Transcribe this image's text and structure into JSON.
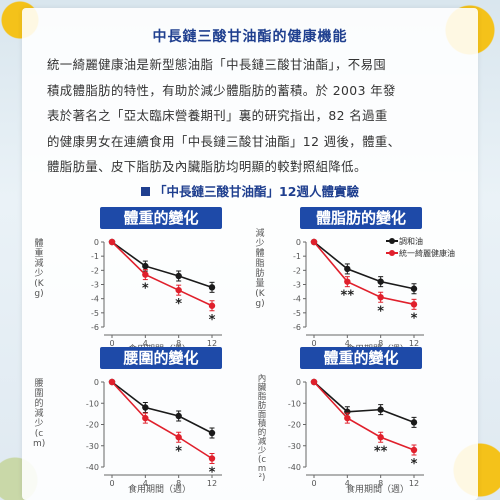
{
  "header": {
    "title": "中長鏈三酸甘油酯的健康機能",
    "paragraph": "統一綺麗健康油是新型態油脂「中長鏈三酸甘油酯」，不易囤\n積成體脂肪的特性，有助於減少體脂肪的蓄積。於 2003 年發\n表於著名之「亞太臨床營養期刊」裏的研究指出，82 名過重\n的健康男女在連續食用「中長鏈三酸甘油酯」12 週後，體重、\n體脂肪量、皮下脂肪及內臟脂肪均明顯的較對照組降低。",
    "subtitle": "「中長鏈三酸甘油酯」12週人體實驗"
  },
  "colors": {
    "control": "#1a1a1a",
    "treatment": "#e0202c",
    "title_bg": "#1e4aa8"
  },
  "legend": {
    "control": "調和油",
    "treatment": "統一綺麗健康油"
  },
  "chart_data": [
    {
      "type": "line",
      "title": "體重的變化",
      "ylabel": "體重減少(Kg)",
      "xlabel": "食用期間（週）",
      "x": [
        0,
        4,
        8,
        12
      ],
      "ylim": [
        -6,
        0
      ],
      "yticks": [
        0,
        -1,
        -2,
        -3,
        -4,
        -5,
        -6
      ],
      "series": [
        {
          "name": "調和油",
          "values": [
            0,
            -1.7,
            -2.4,
            -3.2
          ]
        },
        {
          "name": "統一綺麗健康油",
          "values": [
            0,
            -2.3,
            -3.4,
            -4.5
          ]
        }
      ],
      "annotations": [
        {
          "x": 4,
          "text": "*"
        },
        {
          "x": 8,
          "text": "*"
        },
        {
          "x": 12,
          "text": "*"
        }
      ]
    },
    {
      "type": "line",
      "title": "體脂肪的變化",
      "ylabel": "減少體脂肪量(Kg)",
      "xlabel": "食用期間（週）",
      "x": [
        0,
        4,
        8,
        12
      ],
      "ylim": [
        -6,
        0
      ],
      "yticks": [
        0,
        -1,
        -2,
        -3,
        -4,
        -5,
        -6
      ],
      "series": [
        {
          "name": "調和油",
          "values": [
            0,
            -1.9,
            -2.8,
            -3.3
          ]
        },
        {
          "name": "統一綺麗健康油",
          "values": [
            0,
            -2.8,
            -3.9,
            -4.4
          ]
        }
      ],
      "annotations": [
        {
          "x": 4,
          "text": "**"
        },
        {
          "x": 8,
          "text": "*"
        },
        {
          "x": 12,
          "text": "*"
        }
      ]
    },
    {
      "type": "line",
      "title": "腰圍的變化",
      "ylabel": "腰圍的減少(cm)",
      "xlabel": "食用期間（週）",
      "x": [
        0,
        4,
        8,
        12
      ],
      "ylim": [
        -40,
        0
      ],
      "yticks": [
        0,
        -10,
        -20,
        -30,
        -40
      ],
      "series": [
        {
          "name": "調和油",
          "values": [
            0,
            -12,
            -16,
            -24
          ]
        },
        {
          "name": "統一綺麗健康油",
          "values": [
            0,
            -17,
            -26,
            -36
          ]
        }
      ],
      "annotations": [
        {
          "x": 8,
          "text": "*"
        },
        {
          "x": 12,
          "text": "*"
        }
      ]
    },
    {
      "type": "line",
      "title": "體重的變化",
      "ylabel": "內臟脂肪面積的減少(cm²)",
      "xlabel": "食用期間（週）",
      "x": [
        0,
        4,
        8,
        12
      ],
      "ylim": [
        -40,
        0
      ],
      "yticks": [
        0,
        -10,
        -20,
        -30,
        -40
      ],
      "series": [
        {
          "name": "調和油",
          "values": [
            0,
            -14,
            -13,
            -19
          ]
        },
        {
          "name": "統一綺麗健康油",
          "values": [
            0,
            -17,
            -26,
            -32
          ]
        }
      ],
      "annotations": [
        {
          "x": 8,
          "text": "**"
        },
        {
          "x": 12,
          "text": "*"
        }
      ]
    }
  ]
}
